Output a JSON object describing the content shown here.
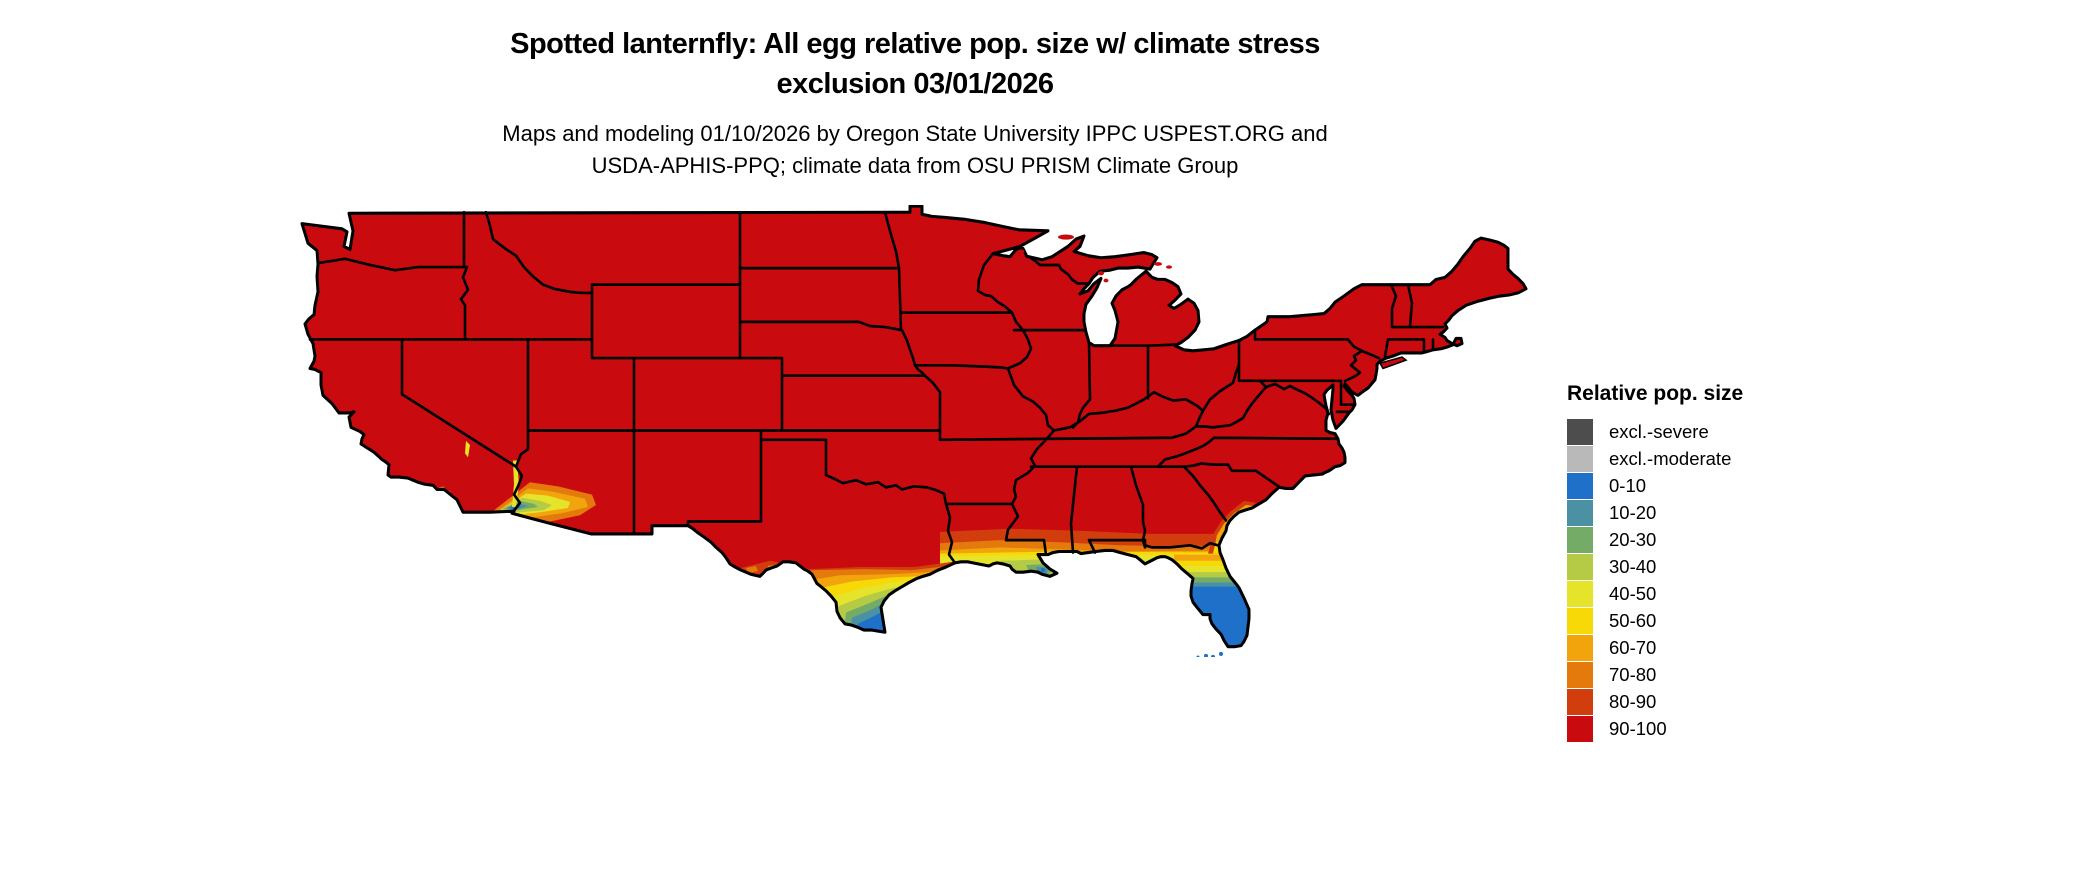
{
  "header": {
    "title_line1": "Spotted lanternfly: All egg relative pop. size w/ climate stress",
    "title_line2": "exclusion 03/01/2026",
    "subtitle_line1": "Maps and modeling 01/10/2026 by Oregon State University IPPC USPEST.ORG and",
    "subtitle_line2": "USDA-APHIS-PPQ; climate data from OSU PRISM Climate Group"
  },
  "legend": {
    "title": "Relative pop. size",
    "items": [
      {
        "label": "excl.-severe",
        "color": "#4d4d4d"
      },
      {
        "label": "excl.-moderate",
        "color": "#b9b9b9"
      },
      {
        "label": "0-10",
        "color": "#1e70c8"
      },
      {
        "label": "10-20",
        "color": "#4b91a3"
      },
      {
        "label": "20-30",
        "color": "#74ab67"
      },
      {
        "label": "30-40",
        "color": "#b5cb45"
      },
      {
        "label": "40-50",
        "color": "#e6e32b"
      },
      {
        "label": "50-60",
        "color": "#f7d908"
      },
      {
        "label": "60-70",
        "color": "#f2a40d"
      },
      {
        "label": "70-80",
        "color": "#e4790c"
      },
      {
        "label": "80-90",
        "color": "#d23d0e"
      },
      {
        "label": "90-100",
        "color": "#c90b10"
      }
    ]
  },
  "map": {
    "border_color": "#000000",
    "water_color": "#ffffff"
  }
}
